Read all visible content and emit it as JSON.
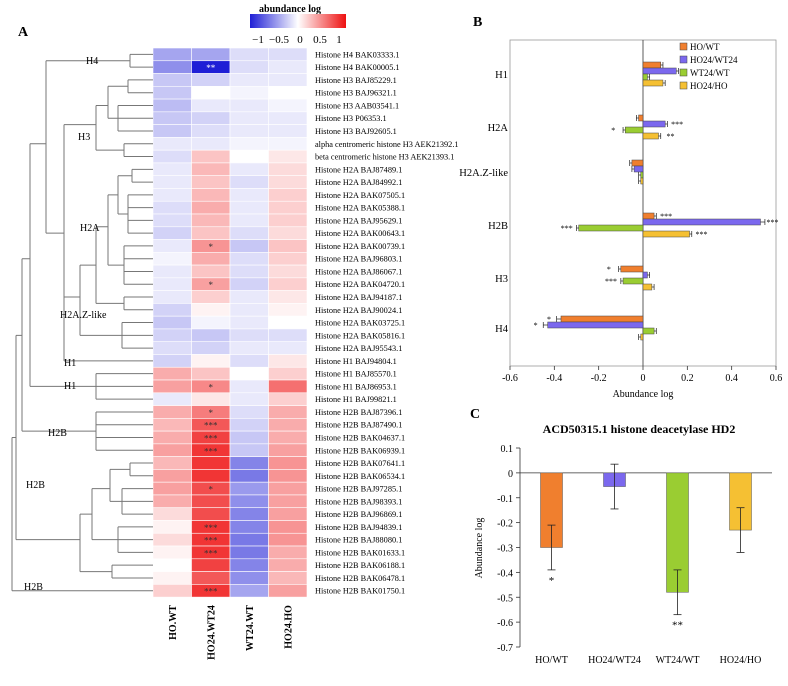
{
  "panels": {
    "a": "A",
    "b": "B",
    "c": "C"
  },
  "legend_colorbar": {
    "title": "abundance log",
    "ticks": [
      "−1",
      "−0.5",
      "0",
      "0.5",
      "1"
    ],
    "min": -1,
    "max": 1
  },
  "heatmap": {
    "columns": [
      "HO.WT",
      "HO24.WT24",
      "WT24.WT",
      "HO24.HO"
    ],
    "colors": {
      "negative": "#1f1fd6",
      "zero": "#ffffff",
      "positive": "#ee1111"
    },
    "row_labels": [
      "Histone H4 BAK03333.1",
      "Histone H4 BAK00005.1",
      "Histone H3 BAJ85229.1",
      "Histone H3 BAJ96321.1",
      "Histone H3 AAB03541.1",
      "Histone H3 P06353.1",
      "Histone H3 BAJ92605.1",
      "alpha centromeric histone H3 AEK21392.1",
      "beta centromeric histone H3  AEK21393.1",
      "Histone H2A BAJ87489.1",
      "Histone H2A BAJ84992.1",
      "Histone H2A BAK07505.1",
      "Histone H2A BAK05388.1",
      "Histone H2A BAJ95629.1",
      "Histone H2A BAK00643.1",
      "Histone H2A BAK00739.1",
      "Histone H2A BAJ96803.1",
      "Histone H2A BAJ86067.1",
      "Histone H2A BAK04720.1",
      "Histone H2A BAJ94187.1",
      "Histone H2A BAJ90024.1",
      "Histone H2A BAK03725.1",
      "Histone H2A BAK05816.1",
      "Histone H2A BAJ95543.1",
      "Histone H1 BAJ94804.1",
      "Histone H1 BAJ85570.1",
      "Histone H1 BAJ86953.1",
      "Histone H1 BAJ99821.1",
      "Histone H2B BAJ87396.1",
      "Histone H2B BAJ87490.1",
      "Histone H2B BAK04637.1",
      "Histone H2B BAK06939.1",
      "Histone H2B BAK07641.1",
      "Histone H2B BAK06534.1",
      "Histone H2B BAJ97285.1",
      "Histone H2B BAJ98393.1",
      "Histone H2B BAJ96869.1",
      "Histone H2B BAJ94839.1",
      "Histone H2B BAJ88080.1",
      "Histone H2B BAK01633.1",
      "Histone H2B BAK06188.1",
      "Histone H2B BAK06478.1",
      "Histone H2B BAK01750.1"
    ],
    "values": [
      [
        -0.4,
        -0.4,
        -0.15,
        -0.15
      ],
      [
        -0.5,
        -1.0,
        -0.15,
        -0.1
      ],
      [
        -0.25,
        -0.2,
        -0.1,
        -0.1
      ],
      [
        -0.25,
        0.0,
        -0.05,
        0.0
      ],
      [
        -0.3,
        -0.1,
        -0.1,
        -0.05
      ],
      [
        -0.25,
        -0.2,
        -0.1,
        -0.1
      ],
      [
        -0.25,
        -0.15,
        -0.1,
        -0.1
      ],
      [
        -0.1,
        -0.1,
        -0.05,
        -0.05
      ],
      [
        -0.15,
        0.25,
        0.0,
        0.1
      ],
      [
        -0.1,
        0.3,
        -0.1,
        0.15
      ],
      [
        -0.1,
        0.25,
        -0.15,
        0.15
      ],
      [
        -0.1,
        0.3,
        -0.1,
        0.2
      ],
      [
        -0.15,
        0.35,
        -0.1,
        0.2
      ],
      [
        -0.15,
        0.3,
        -0.1,
        0.2
      ],
      [
        -0.2,
        0.25,
        -0.15,
        0.15
      ],
      [
        -0.1,
        0.45,
        -0.25,
        0.25
      ],
      [
        -0.05,
        0.35,
        -0.15,
        0.2
      ],
      [
        -0.1,
        0.25,
        -0.15,
        0.15
      ],
      [
        -0.1,
        0.4,
        -0.2,
        0.2
      ],
      [
        -0.1,
        0.2,
        -0.1,
        0.1
      ],
      [
        -0.2,
        0.05,
        -0.1,
        0.05
      ],
      [
        -0.25,
        -0.05,
        -0.1,
        0.0
      ],
      [
        -0.2,
        -0.25,
        -0.15,
        -0.15
      ],
      [
        -0.15,
        -0.2,
        -0.1,
        -0.1
      ],
      [
        -0.2,
        0.05,
        -0.15,
        0.1
      ],
      [
        0.35,
        0.25,
        0.0,
        0.2
      ],
      [
        0.4,
        0.5,
        -0.1,
        0.6
      ],
      [
        -0.1,
        0.1,
        -0.1,
        0.2
      ],
      [
        0.35,
        0.55,
        -0.15,
        0.35
      ],
      [
        0.3,
        0.7,
        -0.2,
        0.35
      ],
      [
        0.35,
        0.8,
        -0.25,
        0.35
      ],
      [
        0.4,
        0.85,
        -0.25,
        0.4
      ],
      [
        0.3,
        0.85,
        -0.55,
        0.45
      ],
      [
        0.4,
        0.85,
        -0.6,
        0.45
      ],
      [
        0.4,
        0.75,
        -0.45,
        0.4
      ],
      [
        0.35,
        0.75,
        -0.5,
        0.4
      ],
      [
        0.15,
        0.75,
        -0.55,
        0.4
      ],
      [
        0.05,
        0.85,
        -0.55,
        0.45
      ],
      [
        0.15,
        0.85,
        -0.6,
        0.45
      ],
      [
        0.05,
        0.85,
        -0.6,
        0.35
      ],
      [
        0.0,
        0.8,
        -0.55,
        0.35
      ],
      [
        0.05,
        0.7,
        -0.5,
        0.3
      ],
      [
        0.2,
        0.85,
        -0.4,
        0.4
      ]
    ],
    "stars": [
      {
        "row": 1,
        "col": 1,
        "text": "**"
      },
      {
        "row": 15,
        "col": 1,
        "text": "*"
      },
      {
        "row": 18,
        "col": 1,
        "text": "*"
      },
      {
        "row": 26,
        "col": 1,
        "text": "*"
      },
      {
        "row": 28,
        "col": 1,
        "text": "*"
      },
      {
        "row": 29,
        "col": 1,
        "text": "***"
      },
      {
        "row": 30,
        "col": 1,
        "text": "***"
      },
      {
        "row": 31,
        "col": 1,
        "text": "***"
      },
      {
        "row": 34,
        "col": 1,
        "text": "*"
      },
      {
        "row": 37,
        "col": 1,
        "text": "***"
      },
      {
        "row": 38,
        "col": 1,
        "text": "***"
      },
      {
        "row": 39,
        "col": 1,
        "text": "***"
      },
      {
        "row": 42,
        "col": 1,
        "text": "***"
      }
    ],
    "dendrogram_labels": [
      "H4",
      "H3",
      "H2A",
      "H2A.Z-like",
      "H1",
      "H1",
      "H2B",
      "H2B",
      "H2B"
    ]
  },
  "chart_data": [
    {
      "type": "bar",
      "orientation": "horizontal",
      "panel": "B",
      "categories": [
        "H1",
        "H2A",
        "H2A.Z-like",
        "H2B",
        "H3",
        "H4"
      ],
      "series": [
        {
          "name": "HO/WT",
          "color": "#f07f2e",
          "values": [
            0.08,
            -0.02,
            -0.05,
            0.05,
            -0.1,
            -0.37
          ],
          "errors": [
            0.01,
            0.01,
            0.01,
            0.01,
            0.01,
            0.02
          ]
        },
        {
          "name": "HO24/WT24",
          "color": "#7b68ee",
          "values": [
            0.15,
            0.1,
            -0.04,
            0.53,
            0.02,
            -0.43
          ],
          "errors": [
            0.01,
            0.01,
            0.01,
            0.02,
            0.01,
            0.02
          ]
        },
        {
          "name": "WT24/WT",
          "color": "#9acd32",
          "values": [
            0.02,
            -0.08,
            -0.01,
            -0.29,
            -0.09,
            0.05
          ],
          "errors": [
            0.01,
            0.01,
            0.01,
            0.01,
            0.01,
            0.01
          ]
        },
        {
          "name": "HO24/HO",
          "color": "#f5c033",
          "values": [
            0.09,
            0.07,
            -0.01,
            0.21,
            0.04,
            -0.01
          ],
          "errors": [
            0.01,
            0.01,
            0.01,
            0.01,
            0.01,
            0.01
          ]
        }
      ],
      "stars": [
        {
          "cat": 1,
          "series": 1,
          "side": "right",
          "text": "***"
        },
        {
          "cat": 1,
          "series": 2,
          "side": "left",
          "text": "*"
        },
        {
          "cat": 1,
          "series": 3,
          "side": "right",
          "text": "**"
        },
        {
          "cat": 3,
          "series": 0,
          "side": "right",
          "text": "***"
        },
        {
          "cat": 3,
          "series": 1,
          "side": "right",
          "text": "***"
        },
        {
          "cat": 3,
          "series": 2,
          "side": "left",
          "text": "***"
        },
        {
          "cat": 3,
          "series": 3,
          "side": "right",
          "text": "***"
        },
        {
          "cat": 4,
          "series": 0,
          "side": "left",
          "text": "*"
        },
        {
          "cat": 4,
          "series": 2,
          "side": "left",
          "text": "***"
        },
        {
          "cat": 5,
          "series": 0,
          "side": "left",
          "text": "*"
        },
        {
          "cat": 5,
          "series": 1,
          "side": "left",
          "text": "*"
        }
      ],
      "xlabel": "Abundance log",
      "xlim": [
        -0.6,
        0.6
      ],
      "xticks": [
        "-0.6",
        "-0.4",
        "-0.2",
        "0",
        "0.2",
        "0.4",
        "0.6"
      ],
      "legend_position": "top-right"
    },
    {
      "type": "bar",
      "panel": "C",
      "title": "ACD50315.1 histone deacetylase HD2",
      "categories": [
        "HO/WT",
        "HO24/WT24",
        "WT24/WT",
        "HO24/HO"
      ],
      "values": [
        -0.3,
        -0.055,
        -0.48,
        -0.23
      ],
      "errors": [
        0.09,
        0.09,
        0.09,
        0.09
      ],
      "colors": [
        "#f07f2e",
        "#7b68ee",
        "#9acd32",
        "#f5c033"
      ],
      "stars": [
        "*",
        "",
        "**",
        ""
      ],
      "ylabel": "Abundance log",
      "ylim": [
        -0.7,
        0.1
      ],
      "yticks": [
        "0.1",
        "0",
        "-0.1",
        "-0.2",
        "-0.3",
        "-0.4",
        "-0.5",
        "-0.6",
        "-0.7"
      ]
    }
  ]
}
